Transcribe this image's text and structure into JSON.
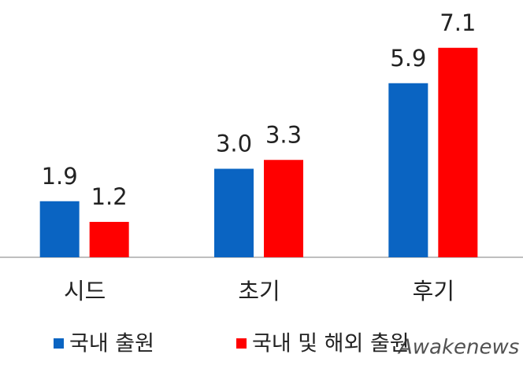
{
  "chart_data": {
    "type": "bar",
    "categories": [
      "시드",
      "초기",
      "후기"
    ],
    "series": [
      {
        "name": "국내 출원",
        "color": "#0a64c2",
        "values": [
          1.9,
          3.0,
          5.9
        ],
        "value_labels": [
          "1.9",
          "3.0",
          "5.9"
        ]
      },
      {
        "name": "국내 및 해외 출원",
        "color": "#ff0000",
        "values": [
          1.2,
          3.3,
          7.1
        ],
        "value_labels": [
          "1.2",
          "3.3",
          "7.1"
        ]
      }
    ],
    "ylim": [
      0,
      8
    ],
    "legend": "bottom",
    "watermark": "Awakenews"
  }
}
